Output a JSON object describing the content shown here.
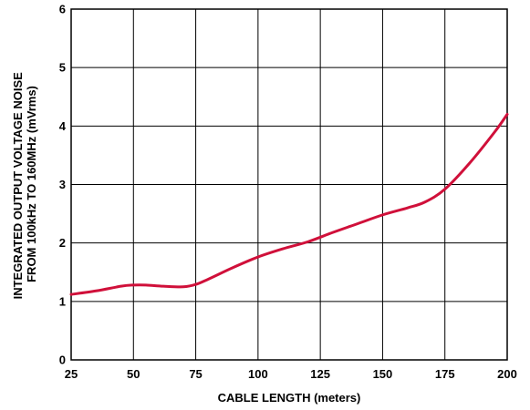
{
  "chart_data": {
    "type": "line",
    "title": "",
    "xlabel": "CABLE LENGTH (meters)",
    "ylabel_lines": [
      "INTEGRATED OUTPUT VOLTAGE NOISE",
      "FROM 100kHz TO 160MHz (mVrms)"
    ],
    "xlim": [
      25,
      200
    ],
    "ylim": [
      0,
      6
    ],
    "xticks": [
      25,
      50,
      75,
      100,
      125,
      150,
      175,
      200
    ],
    "yticks": [
      0,
      1,
      2,
      3,
      4,
      5,
      6
    ],
    "grid": true,
    "line_color": "#d0103a",
    "series": [
      {
        "x": [
          25,
          35,
          45,
          50,
          55,
          62,
          70,
          75,
          80,
          90,
          100,
          110,
          120,
          130,
          140,
          150,
          160,
          167,
          175,
          185,
          195,
          200
        ],
        "values": [
          1.12,
          1.18,
          1.26,
          1.28,
          1.28,
          1.26,
          1.25,
          1.29,
          1.38,
          1.58,
          1.76,
          1.9,
          2.02,
          2.18,
          2.33,
          2.48,
          2.6,
          2.7,
          2.92,
          3.37,
          3.9,
          4.2
        ]
      }
    ]
  }
}
